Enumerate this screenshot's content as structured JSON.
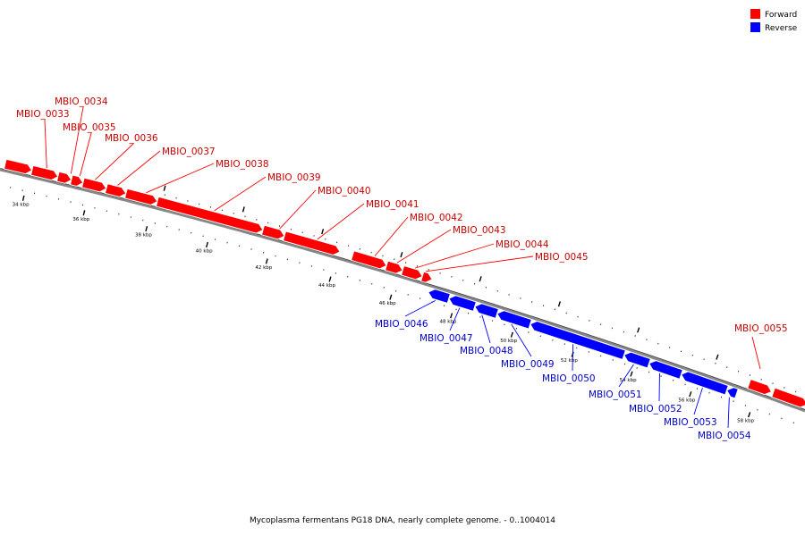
{
  "legend": [
    {
      "label": "Forward",
      "color": "#ff0000"
    },
    {
      "label": "Reverse",
      "color": "#0000ff"
    }
  ],
  "caption": "Mycoplasma fermentans PG18 DNA, nearly complete genome. - 0..1004014",
  "colors": {
    "forward": "#ff0000",
    "reverse": "#0000ff",
    "label_forward": "#cc0000",
    "label_reverse": "#0000cc",
    "backbone": "#888888"
  },
  "ticks": [
    "34 kbp",
    "36 kbp",
    "38 kbp",
    "40 kbp",
    "42 kbp",
    "44 kbp",
    "46 kbp",
    "48 kbp",
    "50 kbp",
    "52 kbp",
    "54 kbp",
    "56 kbp",
    "58 kbp"
  ],
  "genes": [
    {
      "name": "MBIO_0033",
      "strand": "forward"
    },
    {
      "name": "MBIO_0034",
      "strand": "forward"
    },
    {
      "name": "MBIO_0035",
      "strand": "forward"
    },
    {
      "name": "MBIO_0036",
      "strand": "forward"
    },
    {
      "name": "MBIO_0037",
      "strand": "forward"
    },
    {
      "name": "MBIO_0038",
      "strand": "forward"
    },
    {
      "name": "MBIO_0039",
      "strand": "forward"
    },
    {
      "name": "MBIO_0040",
      "strand": "forward"
    },
    {
      "name": "MBIO_0041",
      "strand": "forward"
    },
    {
      "name": "MBIO_0042",
      "strand": "forward"
    },
    {
      "name": "MBIO_0043",
      "strand": "forward"
    },
    {
      "name": "MBIO_0044",
      "strand": "forward"
    },
    {
      "name": "MBIO_0045",
      "strand": "forward"
    },
    {
      "name": "MBIO_0046",
      "strand": "reverse"
    },
    {
      "name": "MBIO_0047",
      "strand": "reverse"
    },
    {
      "name": "MBIO_0048",
      "strand": "reverse"
    },
    {
      "name": "MBIO_0049",
      "strand": "reverse"
    },
    {
      "name": "MBIO_0050",
      "strand": "reverse"
    },
    {
      "name": "MBIO_0051",
      "strand": "reverse"
    },
    {
      "name": "MBIO_0052",
      "strand": "reverse"
    },
    {
      "name": "MBIO_0053",
      "strand": "reverse"
    },
    {
      "name": "MBIO_0054",
      "strand": "reverse"
    },
    {
      "name": "MBIO_0055",
      "strand": "forward"
    }
  ]
}
